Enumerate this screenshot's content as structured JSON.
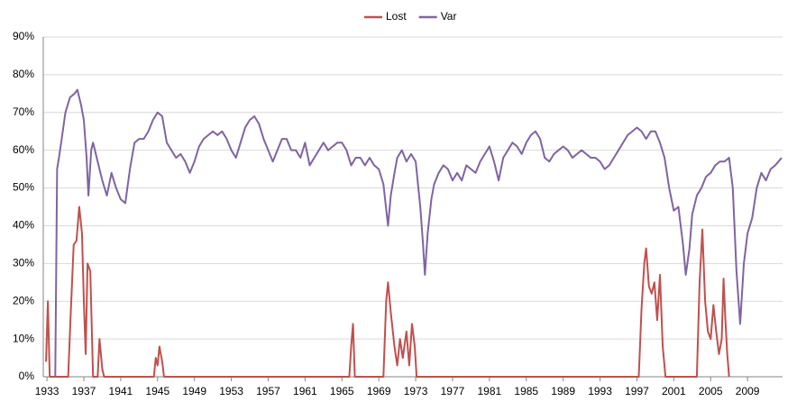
{
  "chart_data": {
    "type": "line",
    "xlim": [
      1932.6,
      2012.8
    ],
    "xticks": [
      1933,
      1937,
      1941,
      1945,
      1949,
      1953,
      1957,
      1961,
      1965,
      1969,
      1973,
      1977,
      1981,
      1985,
      1989,
      1993,
      1997,
      2001,
      2005,
      2009
    ],
    "ylim": [
      0,
      90
    ],
    "yticks": [
      {
        "value": 0,
        "label": "0%"
      },
      {
        "value": 10,
        "label": "10%"
      },
      {
        "value": 20,
        "label": "20%"
      },
      {
        "value": 30,
        "label": "30%"
      },
      {
        "value": 40,
        "label": "40%"
      },
      {
        "value": 50,
        "label": "50%"
      },
      {
        "value": 60,
        "label": "60%"
      },
      {
        "value": 70,
        "label": "70%"
      },
      {
        "value": 80,
        "label": "80%"
      },
      {
        "value": 90,
        "label": "90%"
      }
    ],
    "grid": true,
    "legend": "top",
    "series": [
      {
        "name": "Lost",
        "color": "#c0504d",
        "x": [
          1932.9,
          1933.1,
          1933.3,
          1935.3,
          1935.6,
          1935.9,
          1936.2,
          1936.5,
          1936.8,
          1937,
          1937.2,
          1937.4,
          1937.7,
          1938,
          1938.5,
          1938.7,
          1939,
          1939.2,
          1944.6,
          1944.8,
          1945,
          1945.2,
          1945.5,
          1945.7,
          1965.8,
          1966,
          1966.2,
          1966.4,
          1969.5,
          1969.8,
          1970,
          1970.3,
          1970.7,
          1971,
          1971.3,
          1971.6,
          1972,
          1972.3,
          1972.6,
          1972.9,
          1973.1,
          1997.2,
          1997.5,
          1997.8,
          1998,
          1998.3,
          1998.6,
          1998.9,
          1999.2,
          1999.5,
          1999.8,
          2000.1,
          2003.5,
          2003.8,
          2004.1,
          2004.4,
          2004.7,
          2005,
          2005.3,
          2005.6,
          2005.9,
          2006.2,
          2006.4,
          2006.6,
          2006.8,
          2007
        ],
        "values": [
          4,
          20,
          0,
          0,
          18,
          35,
          36,
          45,
          38,
          20,
          6,
          30,
          28,
          0,
          0,
          10,
          2,
          0,
          0,
          5,
          3,
          8,
          4,
          0,
          0,
          8,
          14,
          0,
          0,
          20,
          25,
          17,
          8,
          3,
          10,
          5,
          12,
          3,
          14,
          8,
          0,
          0,
          18,
          30,
          34,
          24,
          22,
          25,
          15,
          27,
          8,
          0,
          0,
          25,
          39,
          20,
          12,
          10,
          19,
          12,
          6,
          10,
          26,
          15,
          6,
          0
        ]
      },
      {
        "name": "Var",
        "color": "#8064a2",
        "x": [
          1933.9,
          1934.1,
          1934.3,
          1934.6,
          1935,
          1935.5,
          1936,
          1936.3,
          1936.7,
          1937,
          1937.3,
          1937.5,
          1937.8,
          1938,
          1938.5,
          1939,
          1939.5,
          1940,
          1940.5,
          1941,
          1941.5,
          1942,
          1942.5,
          1943,
          1943.5,
          1944,
          1944.5,
          1945,
          1945.5,
          1946,
          1946.5,
          1947,
          1947.5,
          1948,
          1948.5,
          1949,
          1949.5,
          1950,
          1950.5,
          1951,
          1951.5,
          1952,
          1952.5,
          1953,
          1953.5,
          1954,
          1954.5,
          1955,
          1955.5,
          1956,
          1956.5,
          1957,
          1957.5,
          1958,
          1958.5,
          1959,
          1959.5,
          1960,
          1960.5,
          1961,
          1961.5,
          1962,
          1962.5,
          1963,
          1963.5,
          1964,
          1964.5,
          1965,
          1965.5,
          1966,
          1966.5,
          1967,
          1967.5,
          1968,
          1968.5,
          1969,
          1969.5,
          1970,
          1970.3,
          1970.7,
          1971,
          1971.5,
          1972,
          1972.5,
          1973,
          1973.5,
          1973.8,
          1974,
          1974.3,
          1974.7,
          1975,
          1975.5,
          1976,
          1976.5,
          1977,
          1977.5,
          1978,
          1978.5,
          1979,
          1979.5,
          1980,
          1980.5,
          1981,
          1981.5,
          1982,
          1982.5,
          1983,
          1983.5,
          1984,
          1984.5,
          1985,
          1985.5,
          1986,
          1986.5,
          1987,
          1987.5,
          1988,
          1988.5,
          1989,
          1989.5,
          1990,
          1990.5,
          1991,
          1991.5,
          1992,
          1992.5,
          1993,
          1993.5,
          1994,
          1994.5,
          1995,
          1995.5,
          1996,
          1996.5,
          1997,
          1997.5,
          1998,
          1998.5,
          1999,
          1999.5,
          2000,
          2000.5,
          2001,
          2001.5,
          2002,
          2002.3,
          2002.7,
          2003,
          2003.5,
          2004,
          2004.5,
          2005,
          2005.5,
          2006,
          2006.5,
          2007,
          2007.4,
          2007.8,
          2008.2,
          2008.6,
          2009,
          2009.5,
          2010,
          2010.5,
          2011,
          2011.5,
          2012,
          2012.7
        ],
        "values": [
          0,
          55,
          58,
          63,
          70,
          74,
          75,
          76,
          72,
          68,
          58,
          48,
          60,
          62,
          57,
          52,
          48,
          54,
          50,
          47,
          46,
          55,
          62,
          63,
          63,
          65,
          68,
          70,
          69,
          62,
          60,
          58,
          59,
          57,
          54,
          57,
          61,
          63,
          64,
          65,
          64,
          65,
          63,
          60,
          58,
          62,
          66,
          68,
          69,
          67,
          63,
          60,
          57,
          60,
          63,
          63,
          60,
          60,
          58,
          62,
          56,
          58,
          60,
          62,
          60,
          61,
          62,
          62,
          60,
          56,
          58,
          58,
          56,
          58,
          56,
          55,
          51,
          40,
          48,
          54,
          58,
          60,
          57,
          59,
          57,
          45,
          35,
          27,
          38,
          47,
          51,
          54,
          56,
          55,
          52,
          54,
          52,
          56,
          55,
          54,
          57,
          59,
          61,
          57,
          52,
          58,
          60,
          62,
          61,
          59,
          62,
          64,
          65,
          63,
          58,
          57,
          59,
          60,
          61,
          60,
          58,
          59,
          60,
          59,
          58,
          58,
          57,
          55,
          56,
          58,
          60,
          62,
          64,
          65,
          66,
          65,
          63,
          65,
          65,
          62,
          58,
          50,
          44,
          45,
          35,
          27,
          34,
          43,
          48,
          50,
          53,
          54,
          56,
          57,
          57,
          58,
          50,
          28,
          14,
          30,
          38,
          42,
          50,
          54,
          52,
          55,
          56,
          58
        ]
      }
    ]
  }
}
